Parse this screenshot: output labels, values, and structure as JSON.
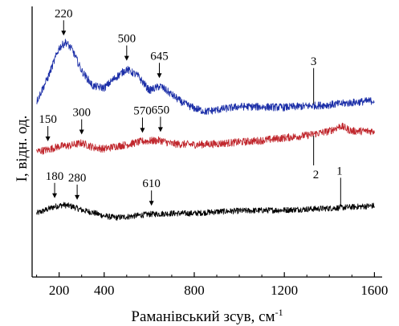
{
  "chart_data": {
    "type": "line",
    "xlabel": "Раманівський зсув, см",
    "xlabel_sup": "-1",
    "ylabel": "I, відн. од.",
    "xlim": [
      80,
      1620
    ],
    "x_ticks": [
      200,
      400,
      800,
      1200,
      1600
    ],
    "x_tick_labels": [
      "200",
      "400",
      "800",
      "1200",
      "1600"
    ],
    "grid": false,
    "legend": "none",
    "series": [
      {
        "label": "1",
        "color": "#000000",
        "baseline": 0.75,
        "x": [
          100,
          150,
          180,
          220,
          260,
          300,
          350,
          400,
          450,
          500,
          600,
          700,
          800,
          900,
          1000,
          1200,
          1400,
          1600
        ],
        "y": [
          0.0,
          0.05,
          0.08,
          0.1,
          0.08,
          0.04,
          0.01,
          -0.03,
          -0.05,
          -0.04,
          -0.01,
          0.0,
          0.0,
          0.02,
          0.03,
          0.04,
          0.06,
          0.09
        ],
        "noise": 0.035,
        "peaks": [
          {
            "label": "180",
            "x": 180
          },
          {
            "label": "280",
            "x": 280
          },
          {
            "label": "610",
            "x": 610
          }
        ]
      },
      {
        "label": "2",
        "color": "#c0272d",
        "baseline": 1.48,
        "x": [
          100,
          150,
          200,
          250,
          300,
          350,
          400,
          450,
          500,
          570,
          650,
          700,
          800,
          900,
          1000,
          1100,
          1200,
          1300,
          1400,
          1450,
          1500,
          1600
        ],
        "y": [
          0.0,
          0.02,
          0.06,
          0.07,
          0.1,
          0.05,
          0.03,
          0.06,
          0.08,
          0.12,
          0.13,
          0.09,
          0.08,
          0.09,
          0.11,
          0.13,
          0.16,
          0.19,
          0.24,
          0.3,
          0.24,
          0.24
        ],
        "noise": 0.045,
        "peaks": [
          {
            "label": "150",
            "x": 150
          },
          {
            "label": "300",
            "x": 300
          },
          {
            "label": "570",
            "x": 570
          },
          {
            "label": "650",
            "x": 650
          }
        ]
      },
      {
        "label": "3",
        "color": "#1c2fa8",
        "baseline": 1.95,
        "x": [
          100,
          150,
          200,
          230,
          260,
          300,
          350,
          400,
          450,
          500,
          550,
          600,
          650,
          700,
          750,
          800,
          850,
          900,
          1000,
          1200,
          1400,
          1600
        ],
        "y": [
          0.12,
          0.4,
          0.75,
          0.82,
          0.72,
          0.48,
          0.3,
          0.28,
          0.4,
          0.5,
          0.42,
          0.25,
          0.3,
          0.2,
          0.1,
          0.04,
          0.0,
          0.02,
          0.06,
          0.05,
          0.08,
          0.13
        ],
        "noise": 0.045,
        "peaks": [
          {
            "label": "220",
            "x": 220
          },
          {
            "label": "500",
            "x": 500
          },
          {
            "label": "645",
            "x": 645
          }
        ]
      }
    ]
  }
}
